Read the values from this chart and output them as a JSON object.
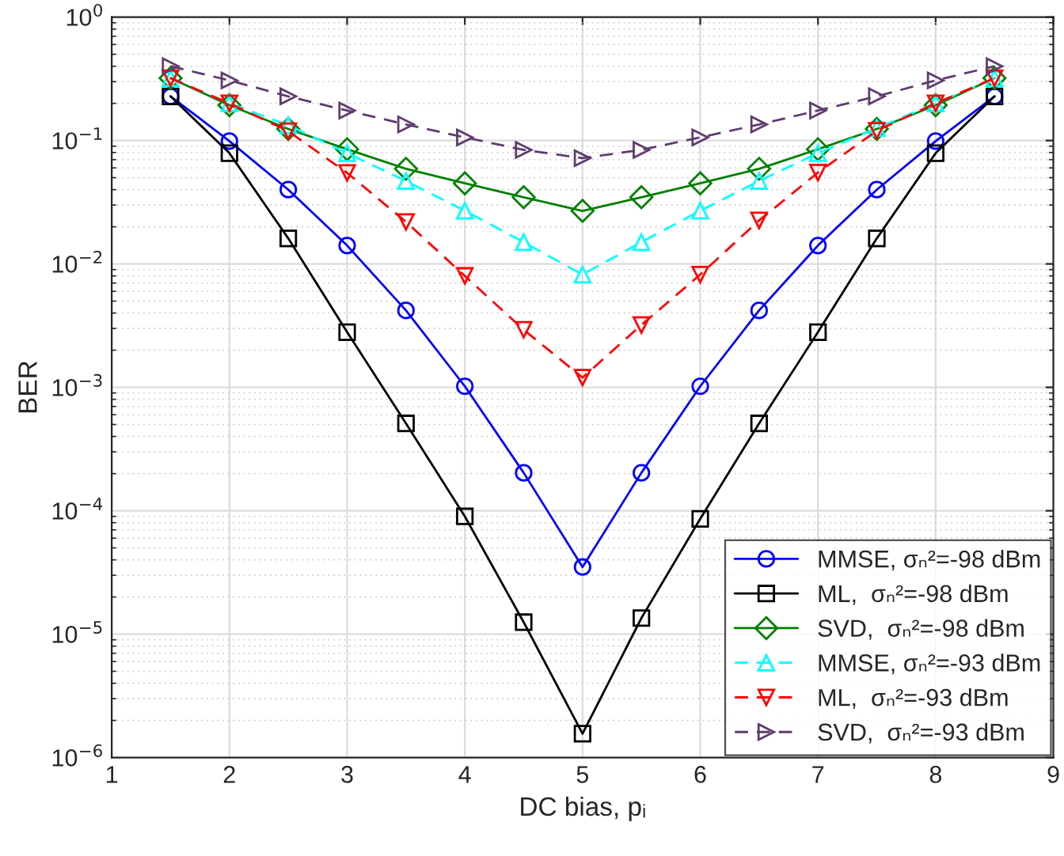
{
  "chart_data": {
    "type": "line",
    "xlabel": "DC bias, pᵢ",
    "ylabel": "BER",
    "log": "y",
    "x": [
      1.5,
      2,
      2.5,
      3,
      3.5,
      4,
      4.5,
      5,
      5.5,
      6,
      6.5,
      7,
      7.5,
      8,
      8.5
    ],
    "xlim": [
      1,
      9
    ],
    "xticks": [
      1,
      2,
      3,
      4,
      5,
      6,
      7,
      8,
      9
    ],
    "ylim": [
      1e-06,
      1
    ],
    "yticks": [
      {
        "value": 1e-06,
        "label": "10$^{−6}$"
      },
      {
        "value": 1e-05,
        "label": "10$^{−5}$"
      },
      {
        "value": 0.0001,
        "label": "10$^{−4}$"
      },
      {
        "value": 0.001,
        "label": "10$^{−3}$"
      },
      {
        "value": 0.01,
        "label": "10$^{−2}$"
      },
      {
        "value": 0.1,
        "label": "10$^{−1}$"
      },
      {
        "value": 1,
        "label": "10$^{0}$"
      }
    ],
    "grid": true,
    "legend": "bottom right",
    "series": [
      {
        "name": "MMSE, σₙ²=-98 dBm",
        "color": "#0000ff",
        "marker": "circle",
        "line_style": "solid",
        "values": [
          0.228,
          0.099,
          0.04,
          0.0141,
          0.0042,
          0.00102,
          0.000203,
          3.5e-05,
          0.000203,
          0.00102,
          0.0042,
          0.0141,
          0.04,
          0.099,
          0.228
        ]
      },
      {
        "name": "ML,  σₙ²=-98 dBm",
        "color": "#000000",
        "marker": "square",
        "line_style": "solid",
        "values": [
          0.228,
          0.079,
          0.0161,
          0.0028,
          0.00051,
          9e-05,
          1.25e-05,
          1.56e-06,
          1.35e-05,
          8.6e-05,
          0.00051,
          0.0028,
          0.0161,
          0.079,
          0.228
        ]
      },
      {
        "name": "SVD,  σₙ²=-98 dBm",
        "color": "#008000",
        "marker": "diamond",
        "line_style": "solid",
        "values": [
          0.32,
          0.193,
          0.124,
          0.085,
          0.059,
          0.045,
          0.0347,
          0.0269,
          0.0347,
          0.045,
          0.059,
          0.085,
          0.124,
          0.193,
          0.32
        ]
      },
      {
        "name": "MMSE, σₙ²=-93 dBm",
        "color": "#00ffff",
        "marker": "triangle",
        "line_style": "dashed",
        "values": [
          0.32,
          0.2,
          0.133,
          0.079,
          0.047,
          0.027,
          0.015,
          0.0082,
          0.015,
          0.027,
          0.047,
          0.079,
          0.126,
          0.2,
          0.32
        ]
      },
      {
        "name": "ML,  σₙ²=-93 dBm",
        "color": "#ff0000",
        "marker": "triangle_down",
        "line_style": "dashed",
        "values": [
          0.32,
          0.2,
          0.119,
          0.0547,
          0.0219,
          0.008,
          0.00293,
          0.0012,
          0.0032,
          0.0082,
          0.0225,
          0.055,
          0.12,
          0.2,
          0.32
        ]
      },
      {
        "name": "SVD,  σₙ²=-93 dBm",
        "color": "#5e3c6e",
        "marker": "triangle_right",
        "line_style": "dashed",
        "values": [
          0.4,
          0.307,
          0.228,
          0.175,
          0.135,
          0.106,
          0.084,
          0.072,
          0.084,
          0.106,
          0.135,
          0.175,
          0.228,
          0.307,
          0.4
        ]
      }
    ]
  }
}
